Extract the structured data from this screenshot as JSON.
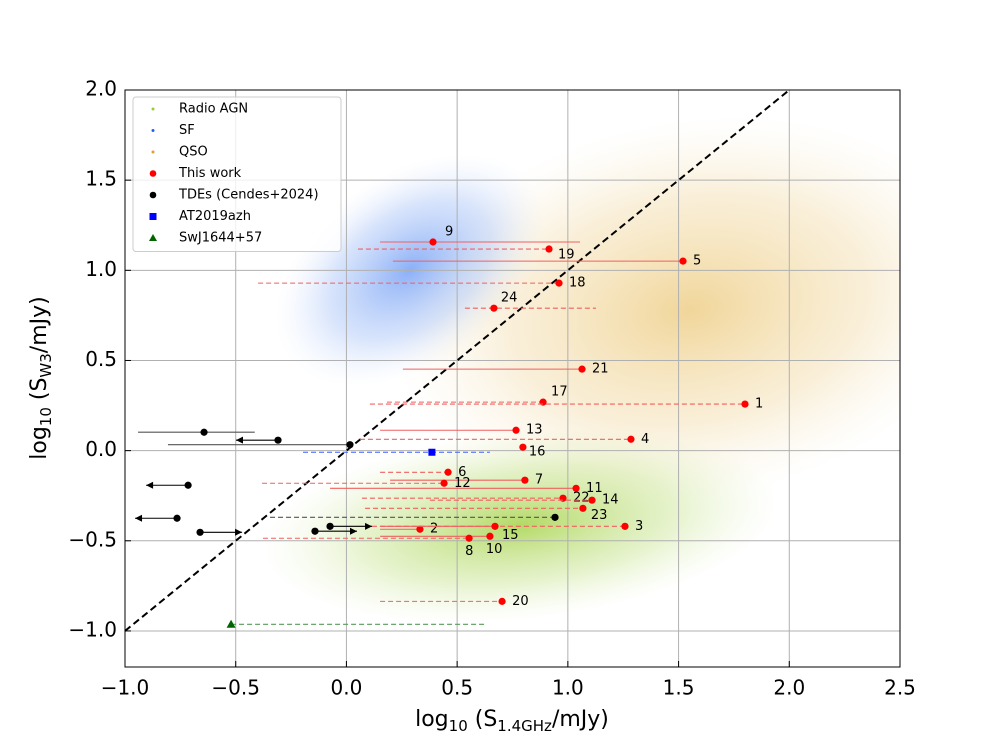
{
  "chart_data": {
    "type": "scatter",
    "x_label": {
      "prefix": "log",
      "sub1": "10",
      "mid": " (S",
      "sub2": "1.4GHz",
      "suffix": "/mJy)"
    },
    "y_label": {
      "prefix": "log",
      "sub1": "10",
      "mid": " (S",
      "sub2": "W3",
      "suffix": "/mJy)"
    },
    "xlim": [
      -1.0,
      2.5
    ],
    "ylim": [
      -1.2,
      2.0
    ],
    "xticks": [
      {
        "value": -1.0,
        "label": "−1.0"
      },
      {
        "value": -0.5,
        "label": "−0.5"
      },
      {
        "value": 0.0,
        "label": "0.0"
      },
      {
        "value": 0.5,
        "label": "0.5"
      },
      {
        "value": 1.0,
        "label": "1.0"
      },
      {
        "value": 1.5,
        "label": "1.5"
      },
      {
        "value": 2.0,
        "label": "2.0"
      },
      {
        "value": 2.5,
        "label": "2.5"
      }
    ],
    "yticks": [
      {
        "value": -1.0,
        "label": "−1.0"
      },
      {
        "value": -0.5,
        "label": "−0.5"
      },
      {
        "value": 0.0,
        "label": "0.0"
      },
      {
        "value": 0.5,
        "label": "0.5"
      },
      {
        "value": 1.0,
        "label": "1.0"
      },
      {
        "value": 1.5,
        "label": "1.5"
      },
      {
        "value": 2.0,
        "label": "2.0"
      }
    ],
    "grid": true,
    "legend": "upper left",
    "density": [
      {
        "name": "Radio AGN",
        "color": "#9acd32"
      },
      {
        "name": "SF",
        "color": "#1f5fff"
      },
      {
        "name": "QSO",
        "color": "#e0a030"
      }
    ],
    "series": [
      {
        "name": "This work",
        "color": "#ff0000",
        "marker": "circle",
        "labels": [
          "9",
          "19",
          "5",
          "18",
          "24",
          "21",
          "17",
          "1",
          "13",
          "4",
          "16",
          "6",
          "7",
          "12",
          "11",
          "22",
          "14",
          "23",
          "3",
          "2",
          "15",
          "10",
          "8",
          "20"
        ],
        "x": [
          0.391,
          0.915,
          1.52,
          0.96,
          0.666,
          1.064,
          0.888,
          1.8,
          0.766,
          1.285,
          0.797,
          0.459,
          0.806,
          0.441,
          1.037,
          0.978,
          1.109,
          1.068,
          1.258,
          0.332,
          0.671,
          0.648,
          0.554,
          0.703
        ],
        "values": [
          1.157,
          1.118,
          1.051,
          0.929,
          0.79,
          0.452,
          0.269,
          0.258,
          0.113,
          0.063,
          0.019,
          -0.12,
          -0.164,
          -0.181,
          -0.209,
          -0.264,
          -0.275,
          -0.32,
          -0.42,
          -0.436,
          -0.42,
          -0.475,
          -0.486,
          -0.836
        ],
        "x_lo": [
          0.152,
          0.052,
          0.21,
          -0.399,
          0.535,
          0.255,
          0.183,
          0.106,
          0.152,
          0.061,
          0.797,
          0.152,
          0.197,
          -0.381,
          -0.074,
          0.07,
          0.377,
          0.084,
          0.115,
          0.152,
          0.152,
          0.152,
          -0.377,
          0.152
        ],
        "x_hi": [
          1.055,
          0.928,
          1.52,
          0.96,
          1.127,
          1.064,
          0.888,
          1.8,
          0.766,
          1.285,
          0.797,
          0.459,
          0.806,
          0.441,
          1.037,
          0.978,
          1.109,
          1.068,
          1.258,
          0.332,
          0.671,
          0.648,
          0.554,
          0.703
        ],
        "err_style": [
          "solid",
          "dashed",
          "solid",
          "dashed",
          "dashed",
          "solid",
          "dashed",
          "dashed",
          "solid",
          "dashed",
          "solid",
          "dashed",
          "solid",
          "dashed",
          "solid",
          "dashed",
          "dashed",
          "dashed",
          "dashed",
          "solid",
          "solid",
          "solid",
          "dashed",
          "dashed"
        ]
      },
      {
        "name": "TDEs (Cendes+2024)",
        "color": "#000000",
        "marker": "circle",
        "x": [
          -0.643,
          -0.309,
          0.016,
          -0.715,
          -0.765,
          -0.661,
          -0.142,
          -0.074,
          0.942
        ],
        "values": [
          0.102,
          0.058,
          0.033,
          -0.192,
          -0.375,
          -0.453,
          -0.447,
          -0.42,
          -0.37
        ],
        "x_lo": [
          -0.941,
          -0.309,
          -0.806,
          -0.715,
          -0.765,
          -0.661,
          -0.142,
          -0.074,
          -0.345
        ],
        "x_hi": [
          -0.414,
          -0.309,
          0.016,
          -0.715,
          -0.765,
          -0.661,
          -0.142,
          -0.074,
          0.942
        ],
        "arrow": [
          "none",
          "left",
          "none",
          "left",
          "left",
          "right",
          "right",
          "right",
          "none"
        ],
        "err_style": [
          "solid",
          "solid",
          "solid",
          "solid",
          "solid",
          "solid",
          "solid",
          "solid",
          "dashed"
        ]
      },
      {
        "name": "AT2019azh",
        "color": "#0000ff",
        "marker": "square",
        "x": [
          0.386
        ],
        "values": [
          -0.009
        ],
        "x_lo": [
          -0.196
        ],
        "x_hi": [
          0.648
        ],
        "err_style": [
          "dashed"
        ]
      },
      {
        "name": "SwJ1644+57",
        "color": "#006400",
        "marker": "triangle",
        "x": [
          -0.521
        ],
        "values": [
          -0.963
        ],
        "x_lo": [
          -0.521
        ],
        "x_hi": [
          0.635
        ],
        "err_style": [
          "dashed"
        ]
      }
    ]
  }
}
